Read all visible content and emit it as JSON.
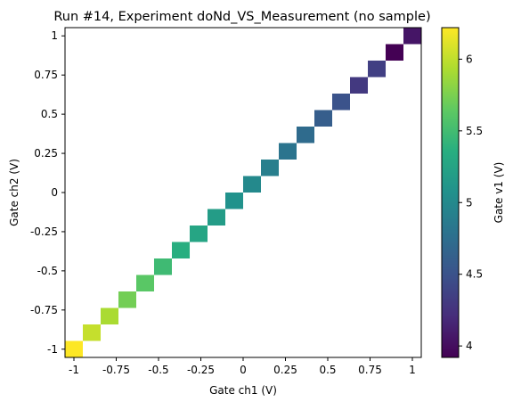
{
  "chart_data": {
    "type": "heatmap",
    "title": "Run #14, Experiment doNd_VS_Measurement (no sample)",
    "xlabel": "Gate ch1 (V)",
    "ylabel": "Gate ch2 (V)",
    "colorbar_label": "Gate v1 (V)",
    "colormap": "viridis",
    "xlim": [
      -1.0526,
      1.0526
    ],
    "ylim": [
      -1.0526,
      1.0526
    ],
    "clim": [
      3.92,
      6.22
    ],
    "x_ticks": [
      {
        "value": -1,
        "label": "-1"
      },
      {
        "value": -0.75,
        "label": "-0.75"
      },
      {
        "value": -0.5,
        "label": "-0.5"
      },
      {
        "value": -0.25,
        "label": "-0.25"
      },
      {
        "value": 0,
        "label": "0"
      },
      {
        "value": 0.25,
        "label": "0.25"
      },
      {
        "value": 0.5,
        "label": "0.5"
      },
      {
        "value": 0.75,
        "label": "0.75"
      },
      {
        "value": 1,
        "label": "1"
      }
    ],
    "y_ticks": [
      {
        "value": -1,
        "label": "-1"
      },
      {
        "value": -0.75,
        "label": "-0.75"
      },
      {
        "value": -0.5,
        "label": "-0.5"
      },
      {
        "value": -0.25,
        "label": "-0.25"
      },
      {
        "value": 0,
        "label": "0"
      },
      {
        "value": 0.25,
        "label": "0.25"
      },
      {
        "value": 0.5,
        "label": "0.5"
      },
      {
        "value": 0.75,
        "label": "0.75"
      },
      {
        "value": 1,
        "label": "1"
      }
    ],
    "colorbar_ticks": [
      {
        "value": 4,
        "label": "4"
      },
      {
        "value": 4.5,
        "label": "4.5"
      },
      {
        "value": 5,
        "label": "5"
      },
      {
        "value": 5.5,
        "label": "5.5"
      },
      {
        "value": 6,
        "label": "6"
      }
    ],
    "cell_width": 0.1053,
    "cells": [
      {
        "x": -1.0,
        "y": -1.0,
        "value": 6.22
      },
      {
        "x": -0.8947,
        "y": -0.8947,
        "value": 6.02
      },
      {
        "x": -0.7895,
        "y": -0.7895,
        "value": 5.92
      },
      {
        "x": -0.6842,
        "y": -0.6842,
        "value": 5.72
      },
      {
        "x": -0.5789,
        "y": -0.5789,
        "value": 5.62
      },
      {
        "x": -0.4737,
        "y": -0.4737,
        "value": 5.48
      },
      {
        "x": -0.3684,
        "y": -0.3684,
        "value": 5.36
      },
      {
        "x": -0.2632,
        "y": -0.2632,
        "value": 5.27
      },
      {
        "x": -0.1579,
        "y": -0.1579,
        "value": 5.18
      },
      {
        "x": -0.0526,
        "y": -0.0526,
        "value": 5.08
      },
      {
        "x": 0.0526,
        "y": 0.0526,
        "value": 5.0
      },
      {
        "x": 0.1579,
        "y": 0.1579,
        "value": 4.9
      },
      {
        "x": 0.2632,
        "y": 0.2632,
        "value": 4.8
      },
      {
        "x": 0.3684,
        "y": 0.3684,
        "value": 4.72
      },
      {
        "x": 0.4737,
        "y": 0.4737,
        "value": 4.6
      },
      {
        "x": 0.5789,
        "y": 0.5789,
        "value": 4.5
      },
      {
        "x": 0.6842,
        "y": 0.6842,
        "value": 4.3
      },
      {
        "x": 0.7895,
        "y": 0.7895,
        "value": 4.35
      },
      {
        "x": 0.8947,
        "y": 0.8947,
        "value": 3.92
      },
      {
        "x": 1.0,
        "y": 1.0,
        "value": 4.05
      }
    ]
  }
}
